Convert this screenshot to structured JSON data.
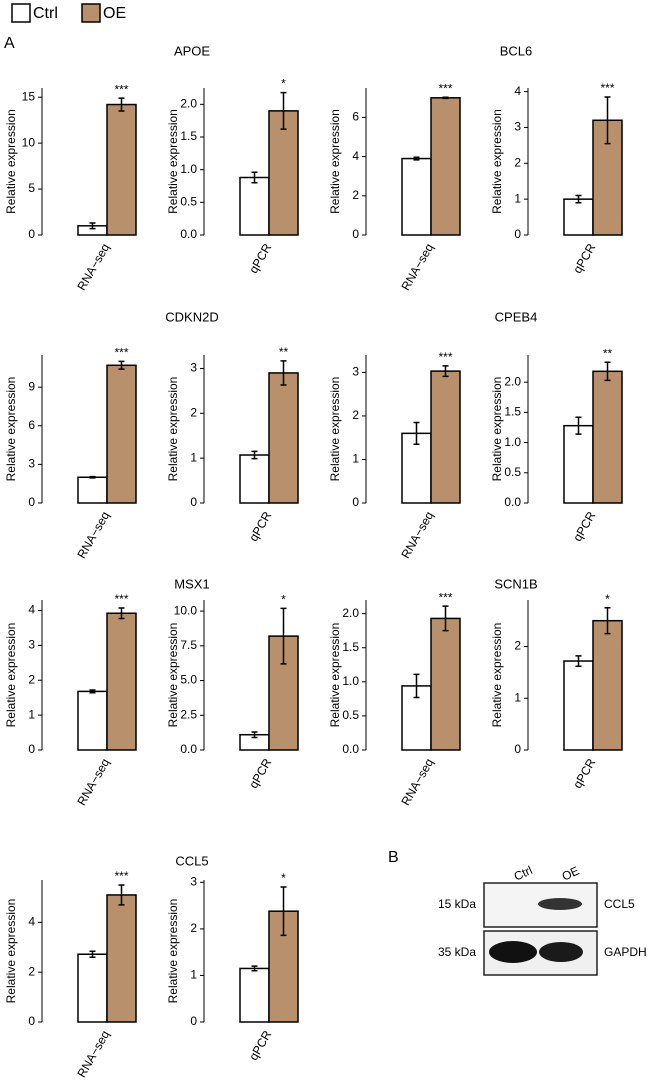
{
  "panel_labels": [
    "A",
    "B"
  ],
  "legend": [
    {
      "name": "Ctrl",
      "color": "#ffffff"
    },
    {
      "name": "OE",
      "color": "#b8906c"
    }
  ],
  "chart_data": [
    {
      "type": "bar",
      "title": "APOE",
      "ylabel": "Relative expression",
      "categories": [
        "RNA−seq"
      ],
      "annotation": "***",
      "ylim": [
        0,
        16
      ],
      "yticks": [
        0,
        5,
        10,
        15
      ],
      "series": [
        {
          "values": [
            1.0
          ],
          "errors": [
            0.3
          ]
        },
        {
          "values": [
            14.2
          ],
          "errors": [
            0.7
          ]
        }
      ]
    },
    {
      "type": "bar",
      "ylabel": "Relative expression",
      "categories": [
        "qPCR"
      ],
      "annotation": "*",
      "ylim": [
        0,
        2.25
      ],
      "yticks": [
        {
          "value": 0,
          "label": "0.0"
        },
        {
          "value": 0.5,
          "label": "0.5"
        },
        {
          "value": 1,
          "label": "1.0"
        },
        {
          "value": 1.5,
          "label": "1.5"
        },
        {
          "value": 2,
          "label": "2.0"
        }
      ],
      "series": [
        {
          "values": [
            0.88
          ],
          "errors": [
            0.08
          ]
        },
        {
          "values": [
            1.9
          ],
          "errors": [
            0.28
          ]
        }
      ]
    },
    {
      "type": "bar",
      "title": "BCL6",
      "ylabel": "Relative expression",
      "categories": [
        "RNA−seq"
      ],
      "annotation": "***",
      "ylim": [
        0,
        7.5
      ],
      "yticks": [
        0,
        2,
        4,
        6
      ],
      "series": [
        {
          "values": [
            3.9
          ],
          "errors": [
            0.07
          ]
        },
        {
          "values": [
            7.0
          ],
          "errors": [
            0.03
          ]
        }
      ]
    },
    {
      "type": "bar",
      "ylabel": "Relative expression",
      "categories": [
        "qPCR"
      ],
      "annotation": "***",
      "ylim": [
        0,
        4.1
      ],
      "yticks": [
        0,
        1,
        2,
        3,
        4
      ],
      "series": [
        {
          "values": [
            1.0
          ],
          "errors": [
            0.1
          ]
        },
        {
          "values": [
            3.2
          ],
          "errors": [
            0.65
          ]
        }
      ]
    },
    {
      "type": "bar",
      "title": "CDKN2D",
      "ylabel": "Relative expression",
      "categories": [
        "RNA−seq"
      ],
      "annotation": "***",
      "ylim": [
        0,
        11.5
      ],
      "yticks": [
        0,
        3,
        6,
        9
      ],
      "series": [
        {
          "values": [
            2.0
          ],
          "errors": [
            0.05
          ]
        },
        {
          "values": [
            10.7
          ],
          "errors": [
            0.3
          ]
        }
      ]
    },
    {
      "type": "bar",
      "ylabel": "Relative expression",
      "categories": [
        "qPCR"
      ],
      "annotation": "**",
      "ylim": [
        0,
        3.3
      ],
      "yticks": [
        0,
        1,
        2,
        3
      ],
      "series": [
        {
          "values": [
            1.07
          ],
          "errors": [
            0.08
          ]
        },
        {
          "values": [
            2.9
          ],
          "errors": [
            0.27
          ]
        }
      ]
    },
    {
      "type": "bar",
      "title": "CPEB4",
      "ylabel": "Relative expression",
      "categories": [
        "RNA−seq"
      ],
      "annotation": "***",
      "ylim": [
        0,
        3.4
      ],
      "yticks": [
        0,
        1,
        2,
        3
      ],
      "series": [
        {
          "values": [
            1.6
          ],
          "errors": [
            0.25
          ]
        },
        {
          "values": [
            3.03
          ],
          "errors": [
            0.12
          ]
        }
      ]
    },
    {
      "type": "bar",
      "ylabel": "Relative expression",
      "categories": [
        "qPCR"
      ],
      "annotation": "**",
      "ylim": [
        0,
        2.45
      ],
      "yticks": [
        {
          "value": 0,
          "label": "0.0"
        },
        {
          "value": 0.5,
          "label": "0.5"
        },
        {
          "value": 1,
          "label": "1.0"
        },
        {
          "value": 1.5,
          "label": "1.5"
        },
        {
          "value": 2,
          "label": "2.0"
        }
      ],
      "series": [
        {
          "values": [
            1.28
          ],
          "errors": [
            0.14
          ]
        },
        {
          "values": [
            2.18
          ],
          "errors": [
            0.15
          ]
        }
      ]
    },
    {
      "type": "bar",
      "title": "MSX1",
      "ylabel": "Relative expression",
      "categories": [
        "RNA−seq"
      ],
      "annotation": "***",
      "ylim": [
        0,
        4.3
      ],
      "yticks": [
        0,
        1,
        2,
        3,
        4
      ],
      "series": [
        {
          "values": [
            1.68
          ],
          "errors": [
            0.04
          ]
        },
        {
          "values": [
            3.92
          ],
          "errors": [
            0.15
          ]
        }
      ]
    },
    {
      "type": "bar",
      "ylabel": "Relative expression",
      "categories": [
        "qPCR"
      ],
      "annotation": "*",
      "ylim": [
        0,
        10.8
      ],
      "yticks": [
        {
          "value": 0,
          "label": "0.0"
        },
        2.5,
        {
          "value": 5,
          "label": "5.0"
        },
        7.5,
        {
          "value": 10,
          "label": "10.0"
        }
      ],
      "series": [
        {
          "values": [
            1.1
          ],
          "errors": [
            0.2
          ]
        },
        {
          "values": [
            8.2
          ],
          "errors": [
            2.0
          ]
        }
      ]
    },
    {
      "type": "bar",
      "title": "SCN1B",
      "ylabel": "Relative expression",
      "categories": [
        "RNA−seq"
      ],
      "annotation": "***",
      "ylim": [
        0,
        2.2
      ],
      "yticks": [
        {
          "value": 0,
          "label": "0.0"
        },
        0.5,
        {
          "value": 1,
          "label": "1.0"
        },
        1.5,
        {
          "value": 2,
          "label": "2.0"
        }
      ],
      "series": [
        {
          "values": [
            0.94
          ],
          "errors": [
            0.17
          ]
        },
        {
          "values": [
            1.93
          ],
          "errors": [
            0.18
          ]
        }
      ]
    },
    {
      "type": "bar",
      "ylabel": "Relative expression",
      "categories": [
        "qPCR"
      ],
      "annotation": "*",
      "ylim": [
        0,
        2.9
      ],
      "yticks": [
        0,
        1,
        2
      ],
      "series": [
        {
          "values": [
            1.72
          ],
          "errors": [
            0.1
          ]
        },
        {
          "values": [
            2.5
          ],
          "errors": [
            0.25
          ]
        }
      ]
    },
    {
      "type": "bar",
      "title": "CCL5",
      "ylabel": "Relative expression",
      "categories": [
        "RNA−seq"
      ],
      "annotation": "***",
      "ylim": [
        0,
        5.7
      ],
      "yticks": [
        0,
        2,
        4
      ],
      "series": [
        {
          "values": [
            2.72
          ],
          "errors": [
            0.12
          ]
        },
        {
          "values": [
            5.1
          ],
          "errors": [
            0.4
          ]
        }
      ]
    },
    {
      "type": "bar",
      "ylabel": "Relative expression",
      "categories": [
        "qPCR"
      ],
      "annotation": "*",
      "ylim": [
        0,
        3.05
      ],
      "yticks": [
        0,
        1,
        2,
        3
      ],
      "series": [
        {
          "values": [
            1.15
          ],
          "errors": [
            0.05
          ]
        },
        {
          "values": [
            2.38
          ],
          "errors": [
            0.52
          ]
        }
      ]
    }
  ],
  "blot": {
    "lanes": [
      "Ctrl",
      "OE"
    ],
    "rows": [
      {
        "marker": "15 kDa",
        "protein": "CCL5"
      },
      {
        "marker": "35 kDa",
        "protein": "GAPDH"
      }
    ]
  }
}
